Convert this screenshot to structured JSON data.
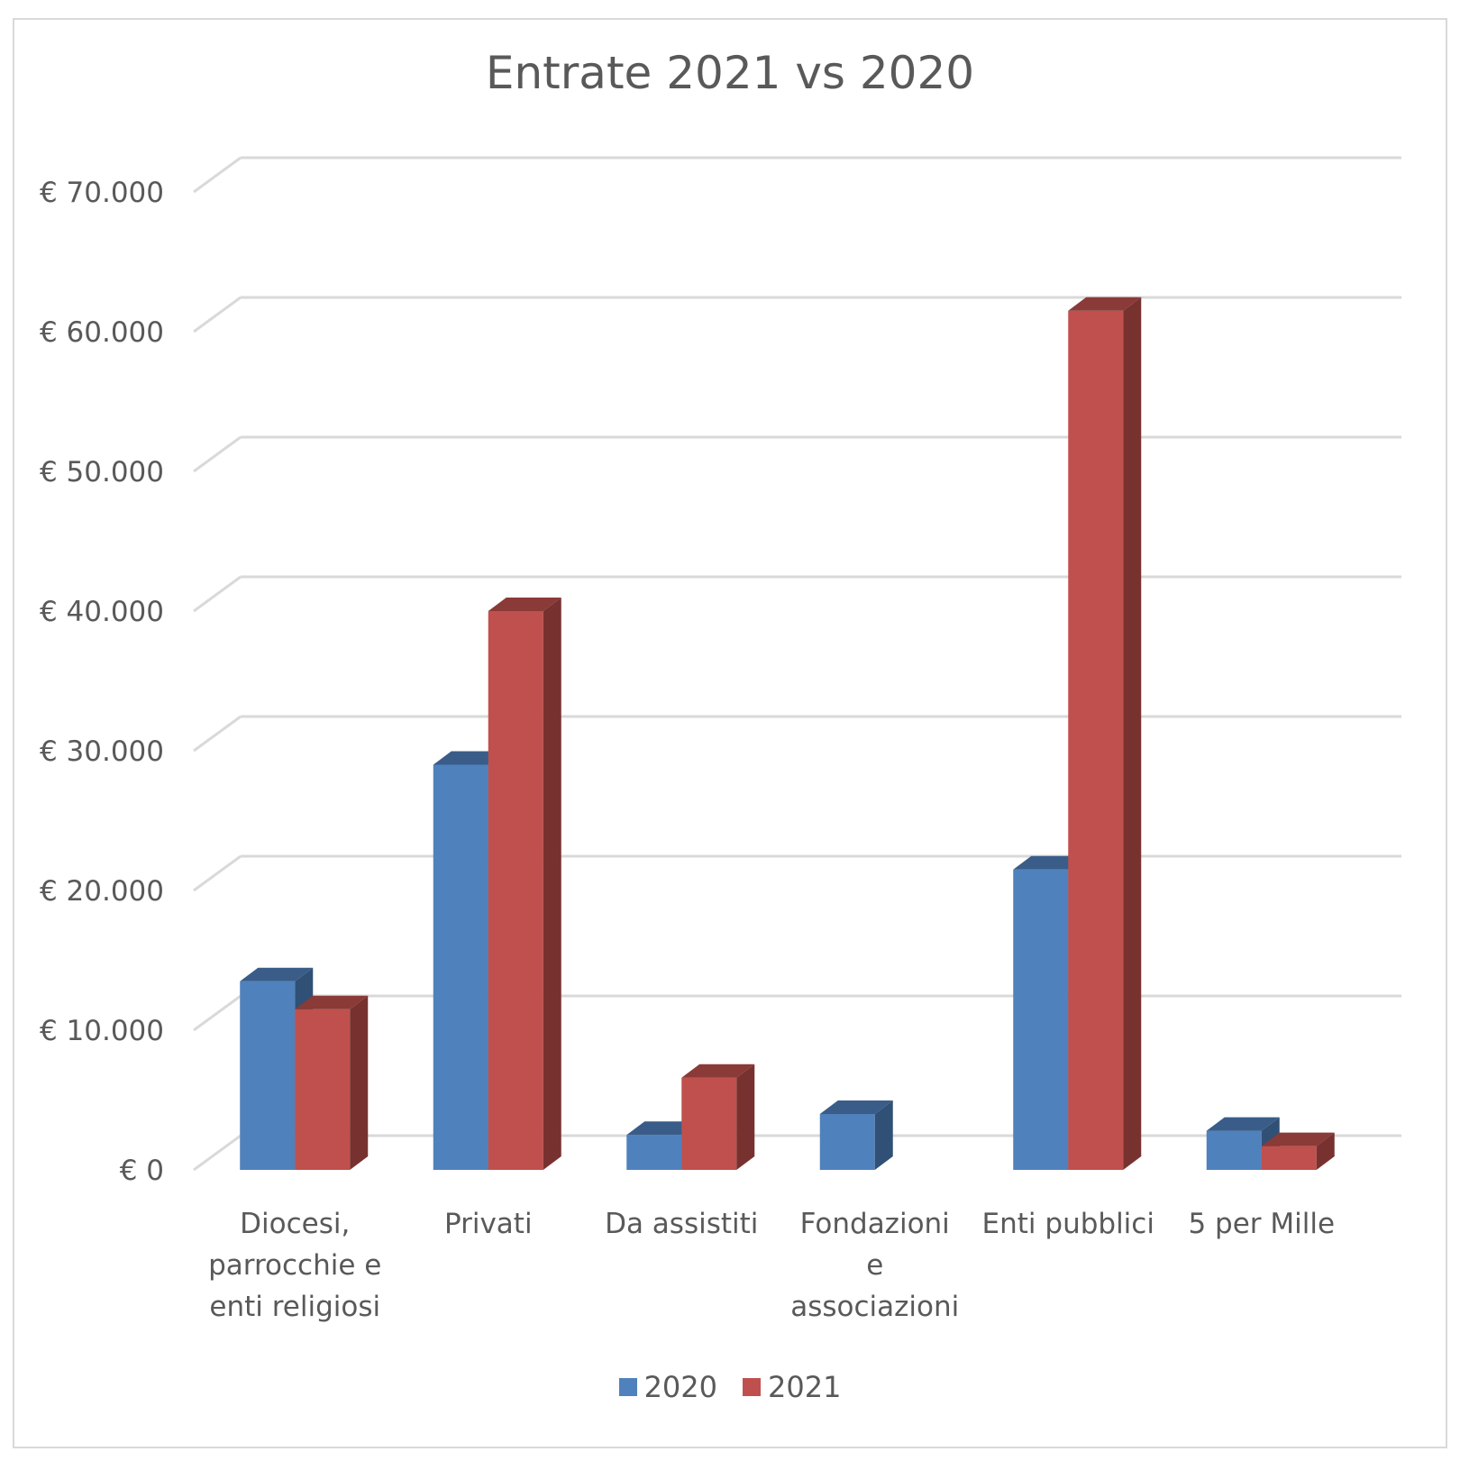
{
  "chart_data": {
    "type": "bar",
    "title": "Entrate 2021 vs 2020",
    "xlabel": "",
    "ylabel": "",
    "ylim": [
      0,
      70000
    ],
    "yticks": [
      {
        "value": 0,
        "label": "€ 0"
      },
      {
        "value": 10000,
        "label": "€ 10.000"
      },
      {
        "value": 20000,
        "label": "€ 20.000"
      },
      {
        "value": 30000,
        "label": "€ 30.000"
      },
      {
        "value": 40000,
        "label": "€ 40.000"
      },
      {
        "value": 50000,
        "label": "€ 50.000"
      },
      {
        "value": 60000,
        "label": "€ 60.000"
      },
      {
        "value": 70000,
        "label": "€ 70.000"
      }
    ],
    "categories": [
      [
        "Diocesi,",
        "parrocchie e",
        "enti religiosi"
      ],
      [
        "Privati"
      ],
      [
        "Da assistiti"
      ],
      [
        "Fondazioni",
        "e",
        "associazioni"
      ],
      [
        "Enti pubblici"
      ],
      [
        "5 per Mille"
      ]
    ],
    "series": [
      {
        "name": "2020",
        "color": "#4f81bd",
        "values": [
          13500,
          29000,
          2500,
          4000,
          21500,
          2800
        ]
      },
      {
        "name": "2021",
        "color": "#c0504d",
        "values": [
          11500,
          40000,
          6600,
          0,
          61500,
          1700
        ]
      }
    ],
    "grid": true,
    "legend_position": "bottom",
    "style": "3d-clustered-column"
  }
}
